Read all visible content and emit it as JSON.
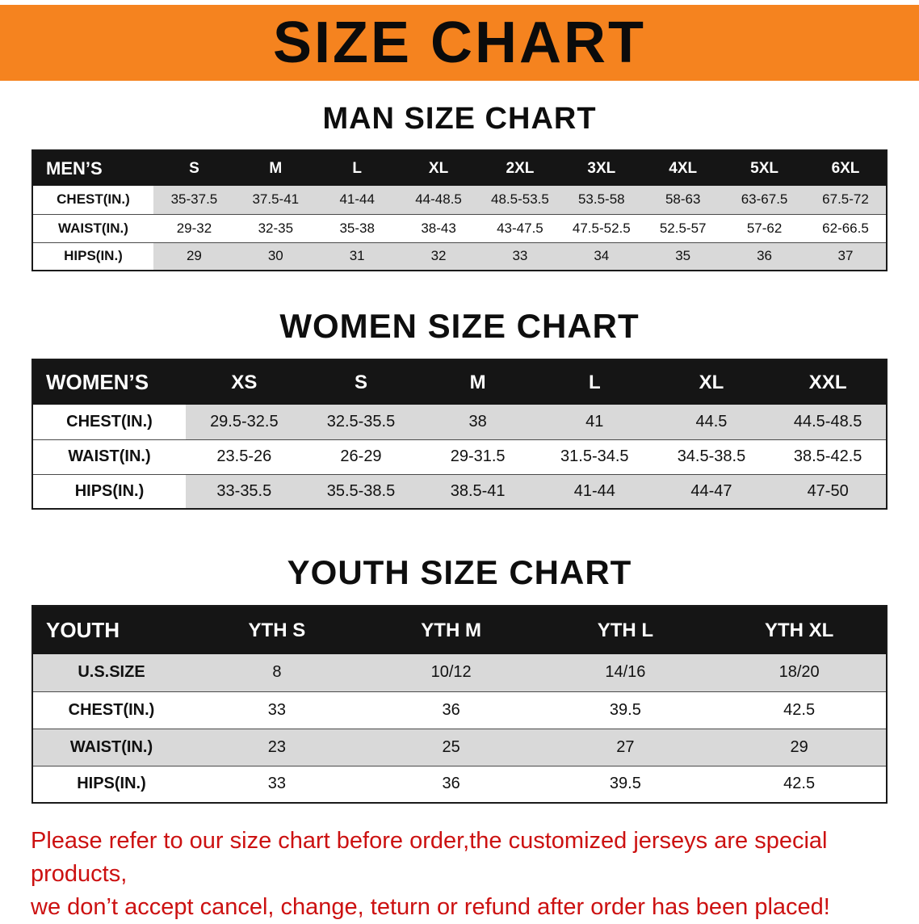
{
  "banner": {
    "title": "SIZE CHART",
    "bg_color": "#f5831f",
    "text_color": "#0b0b0b"
  },
  "colors": {
    "table_header_bg": "#151515",
    "table_header_text": "#ffffff",
    "row_stripe": "#d9d9d9",
    "disclaimer_text": "#cc1111"
  },
  "sections": [
    {
      "heading": "MAN SIZE CHART",
      "table": {
        "header": [
          "MEN’S",
          "S",
          "M",
          "L",
          "XL",
          "2XL",
          "3XL",
          "4XL",
          "5XL",
          "6XL"
        ],
        "rows": [
          [
            "CHEST(IN.)",
            "35-37.5",
            "37.5-41",
            "41-44",
            "44-48.5",
            "48.5-53.5",
            "53.5-58",
            "58-63",
            "63-67.5",
            "67.5-72"
          ],
          [
            "WAIST(IN.)",
            "29-32",
            "32-35",
            "35-38",
            "38-43",
            "43-47.5",
            "47.5-52.5",
            "52.5-57",
            "57-62",
            "62-66.5"
          ],
          [
            "HIPS(IN.)",
            "29",
            "30",
            "31",
            "32",
            "33",
            "34",
            "35",
            "36",
            "37"
          ]
        ]
      }
    },
    {
      "heading": "WOMEN SIZE CHART",
      "table": {
        "header": [
          "WOMEN’S",
          "XS",
          "S",
          "M",
          "L",
          "XL",
          "XXL"
        ],
        "rows": [
          [
            "CHEST(IN.)",
            "29.5-32.5",
            "32.5-35.5",
            "38",
            "41",
            "44.5",
            "44.5-48.5"
          ],
          [
            "WAIST(IN.)",
            "23.5-26",
            "26-29",
            "29-31.5",
            "31.5-34.5",
            "34.5-38.5",
            "38.5-42.5"
          ],
          [
            "HIPS(IN.)",
            "33-35.5",
            "35.5-38.5",
            "38.5-41",
            "41-44",
            "44-47",
            "47-50"
          ]
        ]
      }
    },
    {
      "heading": "YOUTH SIZE CHART",
      "table": {
        "header": [
          "YOUTH",
          "YTH S",
          "YTH M",
          "YTH L",
          "YTH XL"
        ],
        "rows": [
          [
            "U.S.SIZE",
            "8",
            "10/12",
            "14/16",
            "18/20"
          ],
          [
            "CHEST(IN.)",
            "33",
            "36",
            "39.5",
            "42.5"
          ],
          [
            "WAIST(IN.)",
            "23",
            "25",
            "27",
            "29"
          ],
          [
            "HIPS(IN.)",
            "33",
            "36",
            "39.5",
            "42.5"
          ]
        ]
      }
    }
  ],
  "disclaimer": {
    "line1": "Please refer to our size chart before order,the customized jerseys are special products,",
    "line2": "we don’t accept cancel, change, teturn or refund after order has been placed!"
  }
}
